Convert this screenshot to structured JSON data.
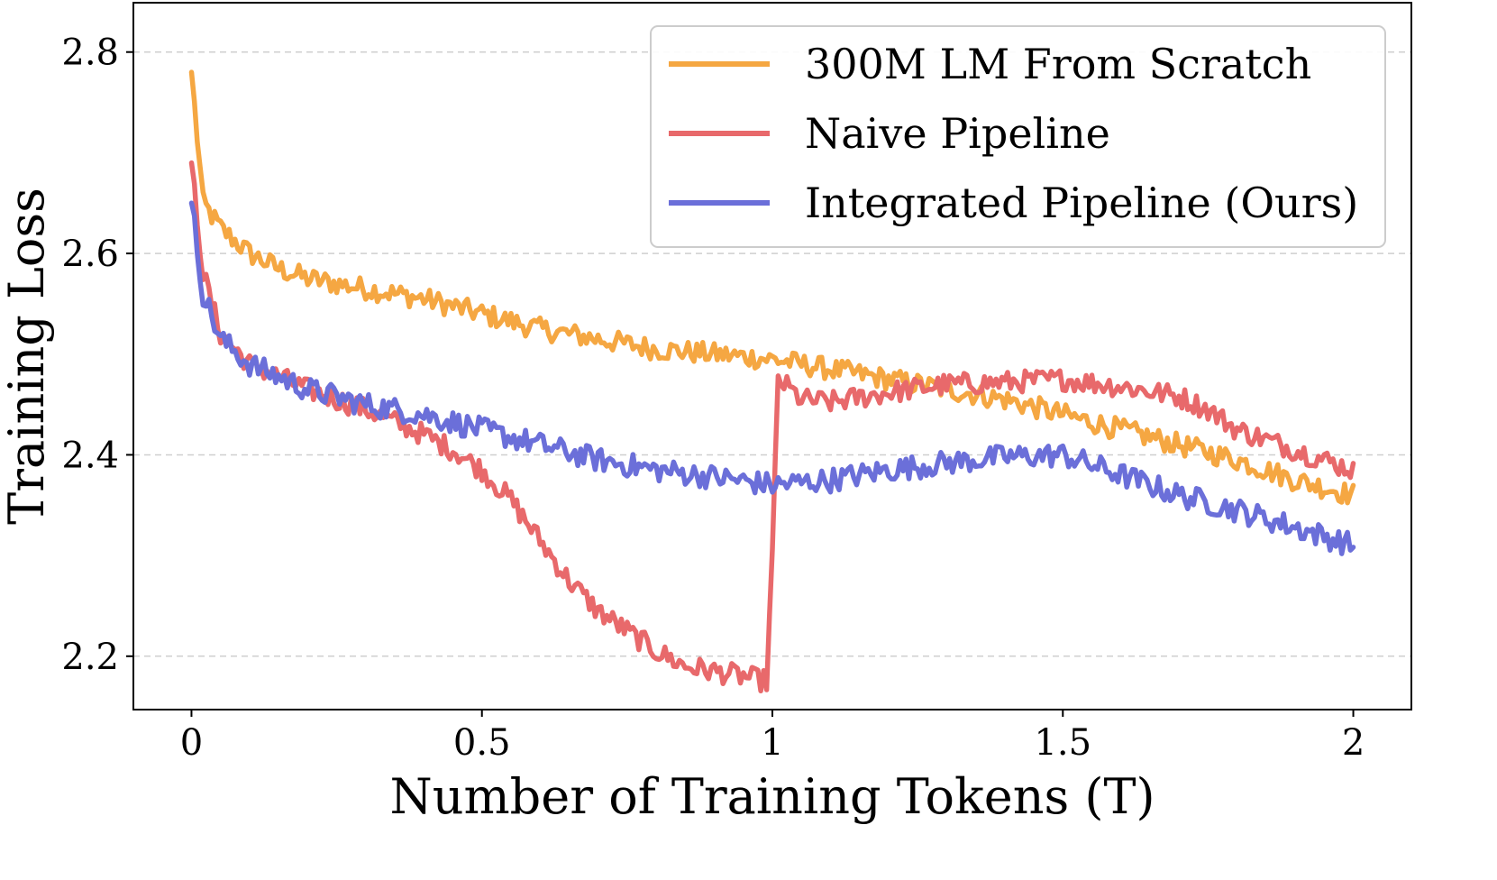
{
  "chart_data": {
    "type": "line",
    "xlabel": "Number of Training Tokens (T)",
    "ylabel": "Training Loss",
    "xlim": [
      -0.1,
      2.1
    ],
    "ylim": [
      2.147,
      2.849
    ],
    "xticks": [
      0,
      0.5,
      1,
      1.5,
      2
    ],
    "xtick_labels": [
      "0",
      "0.5",
      "1",
      "1.5",
      "2"
    ],
    "yticks": [
      2.2,
      2.4,
      2.6,
      2.8
    ],
    "ytick_labels": [
      "2.2",
      "2.4",
      "2.6",
      "2.8"
    ],
    "grid": "horizontal-dashed",
    "legend_position": "top-right",
    "series": [
      {
        "name": "300M LM From Scratch",
        "color": "#F5A742",
        "x": [
          0,
          0.02,
          0.05,
          0.1,
          0.15,
          0.2,
          0.3,
          0.4,
          0.5,
          0.6,
          0.7,
          0.8,
          0.9,
          1.0,
          1.1,
          1.2,
          1.3,
          1.4,
          1.5,
          1.6,
          1.7,
          1.8,
          1.9,
          2.0
        ],
        "values": [
          2.78,
          2.65,
          2.625,
          2.6,
          2.585,
          2.575,
          2.565,
          2.555,
          2.54,
          2.525,
          2.515,
          2.505,
          2.5,
          2.495,
          2.485,
          2.475,
          2.465,
          2.455,
          2.44,
          2.425,
          2.41,
          2.395,
          2.375,
          2.36
        ]
      },
      {
        "name": "Naive Pipeline",
        "color": "#E8696B",
        "x": [
          0,
          0.02,
          0.05,
          0.1,
          0.2,
          0.3,
          0.4,
          0.45,
          0.5,
          0.55,
          0.6,
          0.65,
          0.7,
          0.75,
          0.8,
          0.85,
          0.9,
          0.95,
          0.99,
          1.0,
          1.01,
          1.05,
          1.1,
          1.2,
          1.3,
          1.4,
          1.5,
          1.6,
          1.7,
          1.75,
          1.8,
          1.9,
          2.0
        ],
        "values": [
          2.69,
          2.58,
          2.52,
          2.49,
          2.465,
          2.445,
          2.42,
          2.405,
          2.385,
          2.355,
          2.315,
          2.275,
          2.245,
          2.225,
          2.205,
          2.19,
          2.185,
          2.18,
          2.175,
          2.3,
          2.475,
          2.455,
          2.452,
          2.462,
          2.47,
          2.472,
          2.475,
          2.468,
          2.458,
          2.445,
          2.425,
          2.405,
          2.385
        ]
      },
      {
        "name": "Integrated Pipeline (Ours)",
        "color": "#6B6FD9",
        "x": [
          0,
          0.02,
          0.05,
          0.1,
          0.2,
          0.3,
          0.4,
          0.5,
          0.6,
          0.7,
          0.8,
          0.9,
          1.0,
          1.1,
          1.2,
          1.3,
          1.4,
          1.5,
          1.6,
          1.7,
          1.8,
          1.9,
          2.0
        ],
        "values": [
          2.65,
          2.56,
          2.515,
          2.49,
          2.465,
          2.45,
          2.44,
          2.425,
          2.41,
          2.395,
          2.385,
          2.378,
          2.37,
          2.375,
          2.385,
          2.392,
          2.398,
          2.4,
          2.38,
          2.36,
          2.345,
          2.328,
          2.31
        ]
      }
    ]
  }
}
